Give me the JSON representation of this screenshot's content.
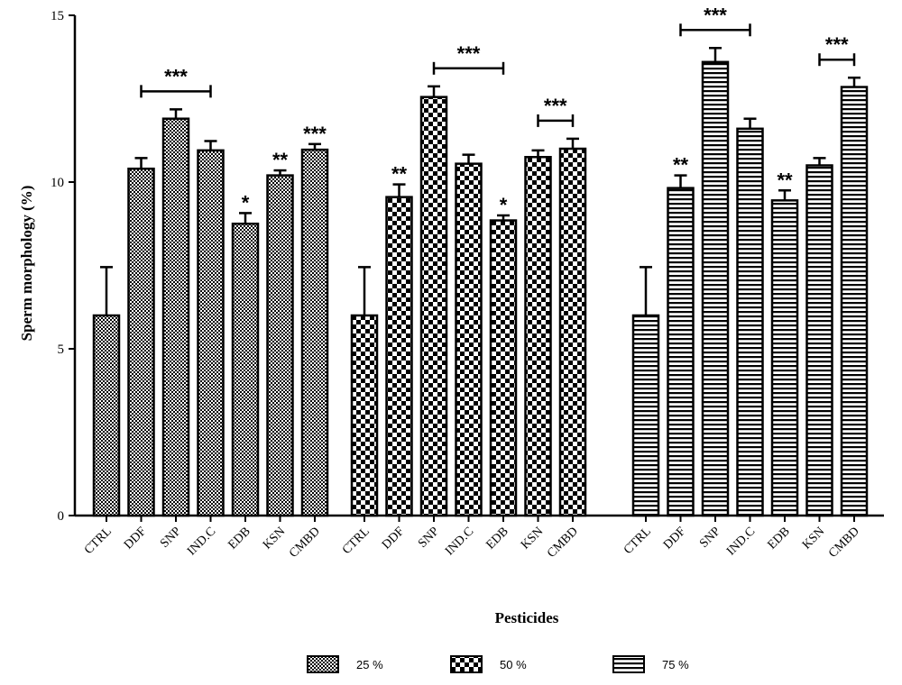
{
  "chart_data": {
    "type": "bar",
    "title": "",
    "xlabel": "Pesticides",
    "ylabel": "Sperm morphology (%)",
    "ylim": [
      0,
      15
    ],
    "yticks": [
      "0",
      "5",
      "10",
      "15"
    ],
    "categories": [
      "CTRL",
      "DDF",
      "SNP",
      "IND.C",
      "EDB",
      "KSN",
      "CMBD"
    ],
    "series": [
      {
        "name": "25 %",
        "pattern": "dense-checker",
        "values": [
          6.0,
          10.4,
          11.9,
          10.95,
          8.75,
          10.2,
          10.97
        ],
        "errors": [
          1.45,
          0.32,
          0.28,
          0.28,
          0.32,
          0.15,
          0.17
        ],
        "significance": [
          "",
          "",
          "",
          "",
          "*",
          "**",
          "***"
        ]
      },
      {
        "name": "50 %",
        "pattern": "checker",
        "values": [
          6.0,
          9.55,
          12.55,
          10.55,
          8.85,
          10.75,
          11.0
        ],
        "errors": [
          1.45,
          0.38,
          0.32,
          0.27,
          0.15,
          0.2,
          0.3
        ],
        "significance": [
          "",
          "**",
          "",
          "",
          "*",
          "",
          ""
        ]
      },
      {
        "name": "75 %",
        "pattern": "horizontal-stripes",
        "values": [
          6.0,
          9.82,
          13.6,
          11.6,
          9.45,
          10.5,
          12.85
        ],
        "errors": [
          1.45,
          0.38,
          0.42,
          0.3,
          0.3,
          0.22,
          0.28
        ],
        "significance": [
          "",
          "**",
          "",
          "",
          "**",
          "",
          ""
        ]
      }
    ],
    "brackets": [
      {
        "series": 0,
        "from": 1,
        "to": 3,
        "label": "***"
      },
      {
        "series": 1,
        "from": 2,
        "to": 4,
        "label": "***"
      },
      {
        "series": 1,
        "from": 5,
        "to": 6,
        "label": "***"
      },
      {
        "series": 2,
        "from": 1,
        "to": 3,
        "label": "***"
      },
      {
        "series": 2,
        "from": 5,
        "to": 6,
        "label": "***"
      }
    ],
    "grid": false,
    "legend": "bottom"
  }
}
